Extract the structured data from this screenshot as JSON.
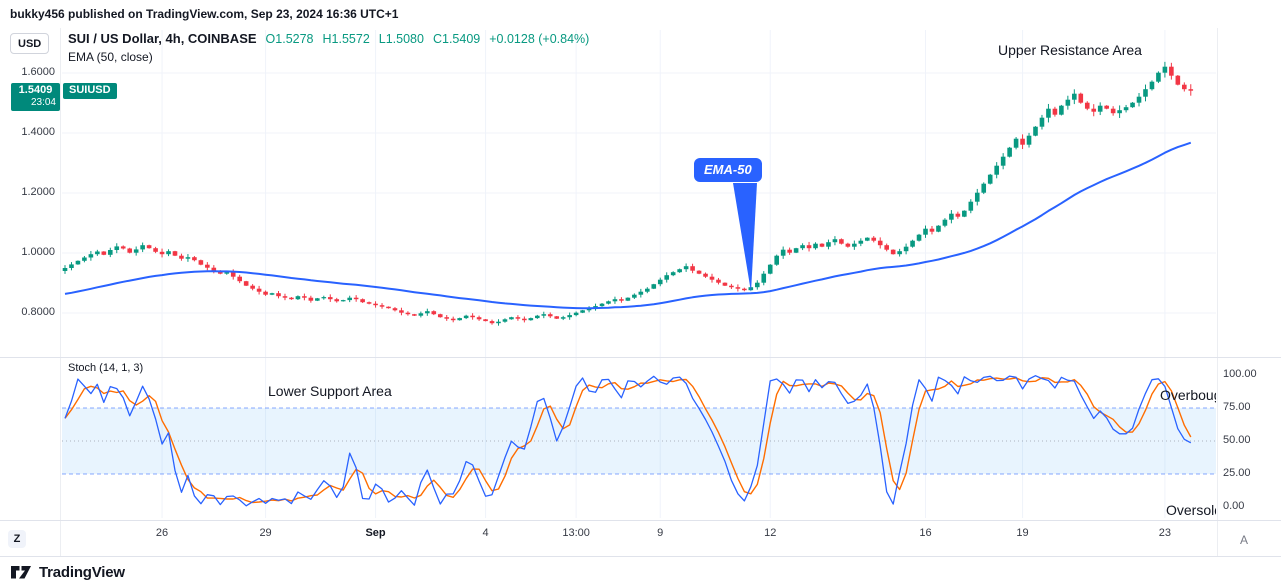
{
  "credit": "bukky456 published on TradingView.com, Sep 23, 2024 16:36 UTC+1",
  "header": {
    "symbol_title": "SUI / US Dollar, 4h, COINBASE",
    "ohlc": {
      "open": "O1.5278",
      "high": "H1.5572",
      "low": "L1.5080",
      "close": "C1.5409",
      "change": "+0.0128 (+0.84%)"
    },
    "indicator_label": "EMA (50, close)"
  },
  "left_scale": {
    "currency_button": "USD",
    "price_label": "1.5409",
    "countdown": "23:04",
    "symbol_badge": "SUIUSD",
    "label_color": "#00897b"
  },
  "annotations": {
    "upper_resistance": "Upper Resistance Area",
    "lower_support": "Lower Support Area",
    "overbought": "Overbought",
    "oversold": "Oversold",
    "ema_callout": "EMA-50"
  },
  "stoch_panel": {
    "title": "Stoch (14, 1, 3)"
  },
  "buttons": {
    "bottom_left": "Z",
    "bottom_right": "A"
  },
  "footer": {
    "brand": "TradingView"
  },
  "colors": {
    "up": "#089981",
    "down": "#f23645",
    "ema_line": "#2962ff",
    "stoch_k": "#2962ff",
    "stoch_d": "#ff6d00",
    "ohlc_text": "#089981",
    "price_label_bg": "#00897b",
    "grid": "#f0f3fa"
  },
  "chart_data": {
    "type": "candlestick",
    "symbol": "SUIUSD",
    "interval": "4h",
    "exchange": "COINBASE",
    "price_axis": {
      "side": "left",
      "ticks": [
        {
          "value": 1.6,
          "label": "1.6000"
        },
        {
          "value": 1.4,
          "label": "1.4000"
        },
        {
          "value": 1.2,
          "label": "1.2000"
        },
        {
          "value": 1.0,
          "label": "1.0000"
        },
        {
          "value": 0.8,
          "label": "0.8000"
        }
      ],
      "visible_range": [
        0.69,
        1.72
      ]
    },
    "x_ticks": [
      {
        "label": "26",
        "index": 15,
        "bold": false
      },
      {
        "label": "29",
        "index": 31,
        "bold": false
      },
      {
        "label": "Sep",
        "index": 48,
        "bold": true
      },
      {
        "label": "4",
        "index": 65,
        "bold": false
      },
      {
        "label": "13:00",
        "index": 79,
        "bold": false
      },
      {
        "label": "9",
        "index": 92,
        "bold": false
      },
      {
        "label": "12",
        "index": 109,
        "bold": false
      },
      {
        "label": "16",
        "index": 133,
        "bold": false
      },
      {
        "label": "19",
        "index": 148,
        "bold": false
      },
      {
        "label": "23",
        "index": 170,
        "bold": false
      }
    ],
    "candles": {
      "up_color": "#089981",
      "down_color": "#f23645",
      "first_open": 0.94,
      "closes": [
        0.95,
        0.962,
        0.974,
        0.985,
        0.996,
        1.005,
        0.994,
        1.01,
        1.022,
        1.015,
        1.001,
        1.012,
        1.026,
        1.016,
        1.004,
        0.996,
        1.006,
        0.991,
        0.981,
        0.986,
        0.976,
        0.961,
        0.951,
        0.941,
        0.931,
        0.936,
        0.921,
        0.906,
        0.891,
        0.881,
        0.871,
        0.861,
        0.866,
        0.856,
        0.851,
        0.846,
        0.856,
        0.851,
        0.841,
        0.849,
        0.853,
        0.846,
        0.839,
        0.843,
        0.851,
        0.846,
        0.836,
        0.831,
        0.826,
        0.821,
        0.816,
        0.809,
        0.801,
        0.796,
        0.791,
        0.799,
        0.806,
        0.796,
        0.786,
        0.781,
        0.776,
        0.783,
        0.791,
        0.786,
        0.779,
        0.773,
        0.766,
        0.771,
        0.779,
        0.786,
        0.781,
        0.776,
        0.783,
        0.791,
        0.796,
        0.789,
        0.781,
        0.786,
        0.793,
        0.801,
        0.809,
        0.816,
        0.823,
        0.831,
        0.839,
        0.846,
        0.841,
        0.851,
        0.861,
        0.871,
        0.881,
        0.896,
        0.911,
        0.926,
        0.936,
        0.946,
        0.956,
        0.941,
        0.931,
        0.921,
        0.911,
        0.901,
        0.891,
        0.886,
        0.881,
        0.876,
        0.886,
        0.901,
        0.931,
        0.961,
        0.991,
        1.011,
        1.001,
        1.016,
        1.026,
        1.016,
        1.031,
        1.021,
        1.036,
        1.046,
        1.031,
        1.021,
        1.031,
        1.041,
        1.051,
        1.041,
        1.026,
        1.011,
        0.996,
        1.006,
        1.021,
        1.041,
        1.061,
        1.081,
        1.071,
        1.091,
        1.111,
        1.131,
        1.121,
        1.141,
        1.171,
        1.201,
        1.231,
        1.261,
        1.291,
        1.321,
        1.351,
        1.381,
        1.361,
        1.391,
        1.421,
        1.451,
        1.481,
        1.461,
        1.491,
        1.511,
        1.531,
        1.501,
        1.481,
        1.471,
        1.491,
        1.481,
        1.466,
        1.476,
        1.486,
        1.501,
        1.521,
        1.546,
        1.571,
        1.601,
        1.621,
        1.591,
        1.561,
        1.546,
        1.541
      ],
      "last_close": 1.5409
    },
    "ema": {
      "length": 50,
      "source": "close",
      "seed": 0.86,
      "color": "#2962ff"
    },
    "stoch": {
      "k_length": 14,
      "k_smooth": 1,
      "d_length": 3,
      "k_color": "#2962ff",
      "d_color": "#ff6d00",
      "upper_band": 75,
      "middle": 50,
      "lower_band": 25,
      "band_fill": "rgba(33,150,243,0.10)",
      "band_line_color": "#2962ff",
      "range": [
        0,
        100
      ],
      "axis_ticks": [
        {
          "value": 100,
          "label": "100.00"
        },
        {
          "value": 75,
          "label": "75.00"
        },
        {
          "value": 50,
          "label": "50.00"
        },
        {
          "value": 25,
          "label": "25.00"
        },
        {
          "value": 0,
          "label": "0.00"
        }
      ]
    }
  }
}
